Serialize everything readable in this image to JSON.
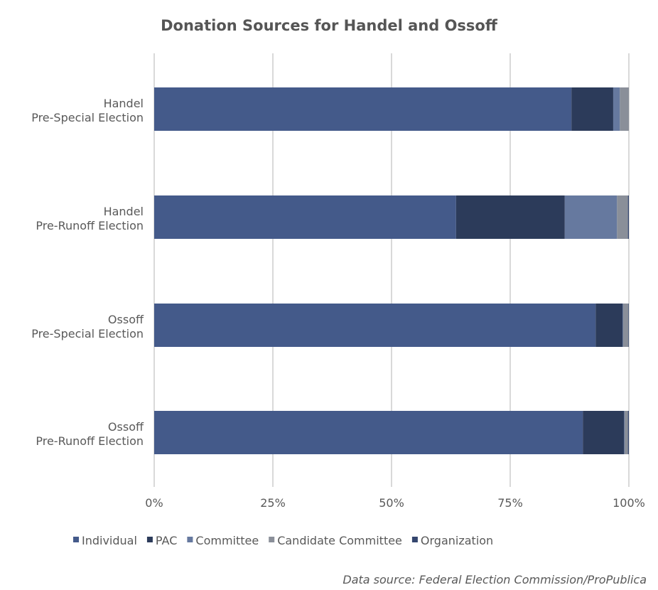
{
  "chart_data": {
    "type": "bar",
    "orientation": "horizontal-stacked-100",
    "title": "Donation Sources for Handel and Ossoff",
    "categories": [
      [
        "Handel",
        "Pre-Special Election"
      ],
      [
        "Handel",
        "Pre-Runoff Election"
      ],
      [
        "Ossoff",
        "Pre-Special Election"
      ],
      [
        "Ossoff",
        "Pre-Runoff Election"
      ]
    ],
    "series": [
      {
        "name": "Individual",
        "color": "#445a8a",
        "values": [
          87.9,
          63.6,
          93.0,
          90.3
        ]
      },
      {
        "name": "PAC",
        "color": "#2c3b5a",
        "values": [
          8.8,
          22.9,
          5.7,
          8.7
        ]
      },
      {
        "name": "Committee",
        "color": "#66799f",
        "values": [
          1.4,
          11.0,
          0.1,
          0.1
        ]
      },
      {
        "name": "Candidate Committee",
        "color": "#8a8f99",
        "values": [
          1.9,
          2.3,
          1.1,
          0.7
        ]
      },
      {
        "name": "Organization",
        "color": "#34466e",
        "values": [
          0,
          0.2,
          0.1,
          0.2
        ]
      }
    ],
    "xticks": [
      "0%",
      "25%",
      "50%",
      "75%",
      "100%"
    ],
    "xlim": [
      0,
      100
    ],
    "grid": true,
    "legend": "bottom",
    "source": "Data source: Federal Election Commission/ProPublica"
  }
}
